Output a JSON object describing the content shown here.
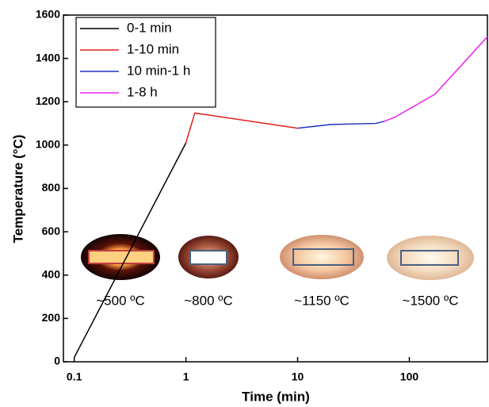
{
  "chart_data": {
    "type": "line",
    "xlabel": "Time (min)",
    "ylabel": "Temperature (°C)",
    "log_x": true,
    "xlim": [
      0.08,
      500
    ],
    "xticks": [
      0.1,
      1,
      10,
      100
    ],
    "ylim": [
      0,
      1600
    ],
    "yticks": [
      0,
      200,
      400,
      600,
      800,
      1000,
      1200,
      1400,
      1600
    ],
    "legend": "upper left",
    "series": [
      {
        "name": "0-1 min",
        "color": "#000000",
        "x": [
          0.1,
          1
        ],
        "values": [
          20,
          1010
        ]
      },
      {
        "name": "1-10 min",
        "color": "#e02020",
        "x": [
          1,
          1.2,
          10
        ],
        "values": [
          1010,
          1148,
          1078
        ]
      },
      {
        "name": "10 min-1 h",
        "color": "#2030c0",
        "x": [
          10,
          20,
          50,
          60
        ],
        "values": [
          1078,
          1095,
          1100,
          1110
        ]
      },
      {
        "name": "1-8 h",
        "color": "#ee22ee",
        "x": [
          60,
          75,
          170,
          500
        ],
        "values": [
          1110,
          1130,
          1235,
          1500
        ]
      }
    ],
    "annotations": [
      "~500 ºC",
      "~800 ºC",
      "~1150 ºC",
      "~1500 ºC"
    ]
  }
}
